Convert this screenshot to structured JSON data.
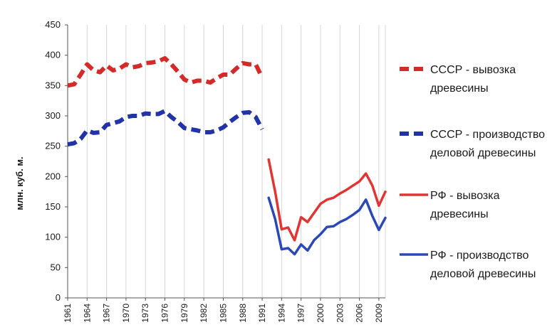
{
  "chart_data": {
    "type": "line",
    "ylabel": "млн. куб. м.",
    "ylim": [
      0,
      450
    ],
    "yticks": [
      0,
      50,
      100,
      150,
      200,
      250,
      300,
      350,
      400,
      450
    ],
    "xticks": [
      "1961",
      "1964",
      "1967",
      "1970",
      "1973",
      "1976",
      "1979",
      "1982",
      "1985",
      "1988",
      "1991",
      "1994",
      "1997",
      "2000",
      "2003",
      "2006",
      "2009"
    ],
    "xlim": [
      1961,
      2010
    ],
    "grid": "vertical",
    "legend_position": "right",
    "series": [
      {
        "name": "СССР - вывозка древесины",
        "color": "#d42a2a",
        "style": "dashed",
        "x": [
          1961,
          1962,
          1963,
          1964,
          1965,
          1966,
          1967,
          1968,
          1969,
          1970,
          1971,
          1972,
          1973,
          1974,
          1975,
          1976,
          1977,
          1978,
          1979,
          1980,
          1981,
          1982,
          1983,
          1984,
          1985,
          1986,
          1987,
          1988,
          1989,
          1990,
          1991
        ],
        "y": [
          350,
          352,
          368,
          385,
          375,
          372,
          383,
          375,
          378,
          385,
          380,
          382,
          387,
          388,
          390,
          395,
          385,
          373,
          360,
          355,
          358,
          358,
          355,
          362,
          368,
          368,
          378,
          387,
          385,
          385,
          363
        ]
      },
      {
        "name": "СССР - производство деловой древесины",
        "color": "#2233a8",
        "style": "dashed",
        "x": [
          1961,
          1962,
          1963,
          1964,
          1965,
          1966,
          1967,
          1968,
          1969,
          1970,
          1971,
          1972,
          1973,
          1974,
          1975,
          1976,
          1977,
          1978,
          1979,
          1980,
          1981,
          1982,
          1983,
          1984,
          1985,
          1986,
          1987,
          1988,
          1989,
          1990,
          1991
        ],
        "y": [
          253,
          255,
          262,
          276,
          272,
          273,
          285,
          288,
          291,
          298,
          300,
          300,
          304,
          303,
          303,
          308,
          298,
          290,
          280,
          278,
          276,
          273,
          273,
          276,
          281,
          290,
          298,
          305,
          306,
          298,
          278
        ]
      },
      {
        "name": "РФ - вывозка древесины",
        "color": "#e33434",
        "style": "solid",
        "x": [
          1992,
          1993,
          1994,
          1995,
          1996,
          1997,
          1998,
          1999,
          2000,
          2001,
          2002,
          2003,
          2004,
          2005,
          2006,
          2007,
          2008,
          2009,
          2010
        ],
        "y": [
          228,
          175,
          113,
          116,
          95,
          133,
          125,
          140,
          155,
          162,
          165,
          172,
          178,
          185,
          192,
          205,
          185,
          152,
          175
        ]
      },
      {
        "name": "РФ - производство деловой древесины",
        "color": "#2b48b8",
        "style": "solid",
        "x": [
          1992,
          1993,
          1994,
          1995,
          1996,
          1997,
          1998,
          1999,
          2000,
          2001,
          2002,
          2003,
          2004,
          2005,
          2006,
          2007,
          2008,
          2009,
          2010
        ],
        "y": [
          165,
          130,
          80,
          82,
          72,
          88,
          78,
          95,
          105,
          117,
          118,
          125,
          130,
          137,
          145,
          162,
          135,
          112,
          132
        ]
      }
    ],
    "legend_lines": [
      [
        "СССР - вывозка",
        "древесины"
      ],
      [
        "СССР - производство",
        "деловой древесины"
      ],
      [
        "РФ - вывозка",
        "древесины"
      ],
      [
        "РФ - производство",
        "деловой древесины"
      ]
    ]
  }
}
